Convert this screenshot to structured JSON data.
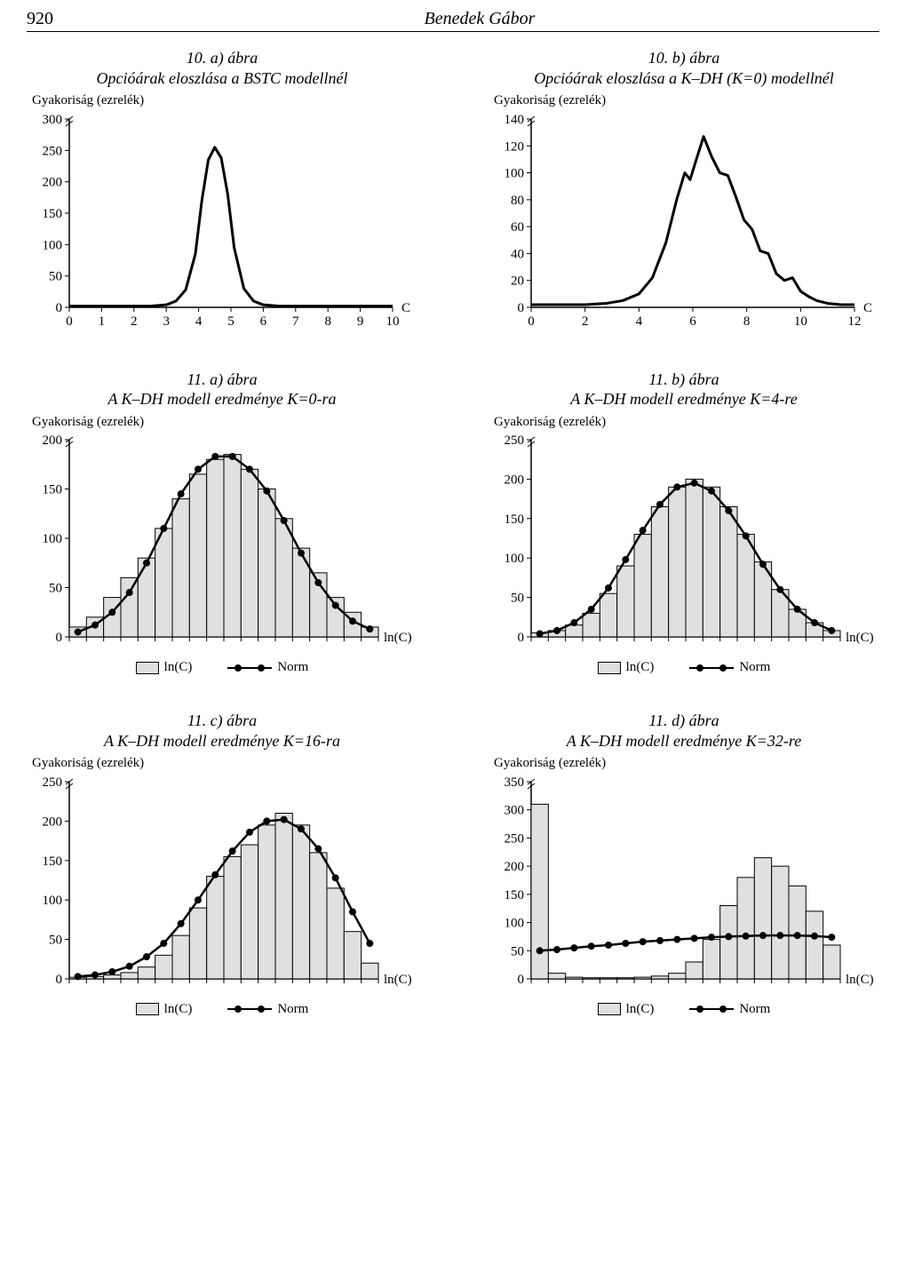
{
  "header": {
    "page_number": "920",
    "author": "Benedek Gábor"
  },
  "axis_label": "Gyakoriság\n(ezrelék)",
  "x_right_label_c": "C",
  "x_right_label_lnc": "ln(C)",
  "legend_box_label": "ln(C)",
  "legend_norm_label": "Norm",
  "style": {
    "line_color": "#000000",
    "bar_fill": "#e0e0e0",
    "bar_stroke": "#000000",
    "marker_fill": "#000000",
    "tick_fontsize": 15,
    "caption_fontsize": 18,
    "line_width_curve": 2.5,
    "line_width_thick": 3.0,
    "marker_r": 4
  },
  "charts": {
    "p10a": {
      "caption": "10. a) ábra\nOpcióárak eloszlása a BSTC modellnél",
      "type": "line",
      "xlim": [
        0,
        10
      ],
      "xticks": [
        0,
        1,
        2,
        3,
        4,
        5,
        6,
        7,
        8,
        9,
        10
      ],
      "ylim": [
        0,
        300
      ],
      "yticks": [
        0,
        50,
        100,
        150,
        200,
        250,
        300
      ],
      "curve": [
        [
          0,
          2
        ],
        [
          0.5,
          2
        ],
        [
          1,
          2
        ],
        [
          1.5,
          2
        ],
        [
          2,
          2
        ],
        [
          2.5,
          2
        ],
        [
          3,
          4
        ],
        [
          3.3,
          10
        ],
        [
          3.6,
          28
        ],
        [
          3.9,
          85
        ],
        [
          4.1,
          170
        ],
        [
          4.3,
          235
        ],
        [
          4.5,
          255
        ],
        [
          4.7,
          238
        ],
        [
          4.9,
          180
        ],
        [
          5.1,
          95
        ],
        [
          5.4,
          30
        ],
        [
          5.7,
          10
        ],
        [
          6,
          4
        ],
        [
          6.5,
          2
        ],
        [
          7,
          2
        ],
        [
          7.5,
          2
        ],
        [
          8,
          2
        ],
        [
          9,
          2
        ],
        [
          10,
          2
        ]
      ]
    },
    "p10b": {
      "caption": "10. b) ábra\nOpcióárak eloszlása a K–DH (K=0) modellnél",
      "type": "line",
      "xlim": [
        0,
        12
      ],
      "xticks": [
        0,
        2,
        4,
        6,
        8,
        10,
        12
      ],
      "ylim": [
        0,
        140
      ],
      "yticks": [
        0,
        20,
        40,
        60,
        80,
        100,
        120,
        140
      ],
      "curve": [
        [
          0,
          2
        ],
        [
          1,
          2
        ],
        [
          2,
          2
        ],
        [
          2.8,
          3
        ],
        [
          3.4,
          5
        ],
        [
          4,
          10
        ],
        [
          4.5,
          22
        ],
        [
          5,
          48
        ],
        [
          5.4,
          80
        ],
        [
          5.7,
          100
        ],
        [
          5.9,
          95
        ],
        [
          6.1,
          108
        ],
        [
          6.4,
          127
        ],
        [
          6.7,
          112
        ],
        [
          7,
          100
        ],
        [
          7.3,
          98
        ],
        [
          7.6,
          82
        ],
        [
          7.9,
          65
        ],
        [
          8.2,
          58
        ],
        [
          8.5,
          42
        ],
        [
          8.8,
          40
        ],
        [
          9.1,
          25
        ],
        [
          9.4,
          20
        ],
        [
          9.7,
          22
        ],
        [
          10,
          12
        ],
        [
          10.3,
          8
        ],
        [
          10.6,
          5
        ],
        [
          11,
          3
        ],
        [
          11.5,
          2
        ],
        [
          12,
          2
        ]
      ]
    },
    "p11a": {
      "caption": "11. a) ábra\nA K–DH modell eredménye K=0-ra",
      "type": "hist+norm",
      "ylim": [
        0,
        200
      ],
      "yticks": [
        0,
        50,
        100,
        150,
        200
      ],
      "n": 18,
      "bars": [
        10,
        20,
        40,
        60,
        80,
        110,
        140,
        165,
        180,
        185,
        170,
        150,
        120,
        90,
        65,
        40,
        25,
        10
      ],
      "norm": [
        5,
        12,
        25,
        45,
        75,
        110,
        145,
        170,
        183,
        183,
        170,
        148,
        118,
        85,
        55,
        32,
        16,
        8
      ]
    },
    "p11b": {
      "caption": "11. b) ábra\nA K–DH modell eredménye K=4-re",
      "type": "hist+norm",
      "ylim": [
        0,
        250
      ],
      "yticks": [
        0,
        50,
        100,
        150,
        200,
        250
      ],
      "n": 18,
      "bars": [
        5,
        8,
        15,
        30,
        55,
        90,
        130,
        165,
        190,
        200,
        190,
        165,
        130,
        95,
        60,
        35,
        18,
        8
      ],
      "norm": [
        4,
        8,
        18,
        35,
        62,
        98,
        135,
        168,
        190,
        195,
        185,
        160,
        128,
        92,
        60,
        35,
        18,
        8
      ]
    },
    "p11c": {
      "caption": "11. c) ábra\nA K–DH modell eredménye K=16-ra",
      "type": "hist+norm",
      "ylim": [
        0,
        250
      ],
      "yticks": [
        0,
        50,
        100,
        150,
        200,
        250
      ],
      "n": 18,
      "bars": [
        2,
        3,
        5,
        8,
        15,
        30,
        55,
        90,
        130,
        155,
        170,
        195,
        210,
        195,
        160,
        115,
        60,
        20
      ],
      "norm": [
        3,
        5,
        9,
        16,
        28,
        45,
        70,
        100,
        132,
        162,
        186,
        200,
        202,
        190,
        165,
        128,
        85,
        45
      ]
    },
    "p11d": {
      "caption": "11. d) ábra\nA K–DH modell eredménye K=32-re",
      "type": "hist+norm",
      "ylim": [
        0,
        350
      ],
      "yticks": [
        0,
        50,
        100,
        150,
        200,
        250,
        300,
        350
      ],
      "n": 18,
      "bars": [
        310,
        10,
        3,
        2,
        2,
        2,
        3,
        5,
        10,
        30,
        70,
        130,
        180,
        215,
        200,
        165,
        120,
        60
      ],
      "norm": [
        50,
        52,
        55,
        58,
        60,
        63,
        66,
        68,
        70,
        72,
        74,
        75,
        76,
        77,
        77,
        77,
        76,
        74
      ]
    }
  }
}
